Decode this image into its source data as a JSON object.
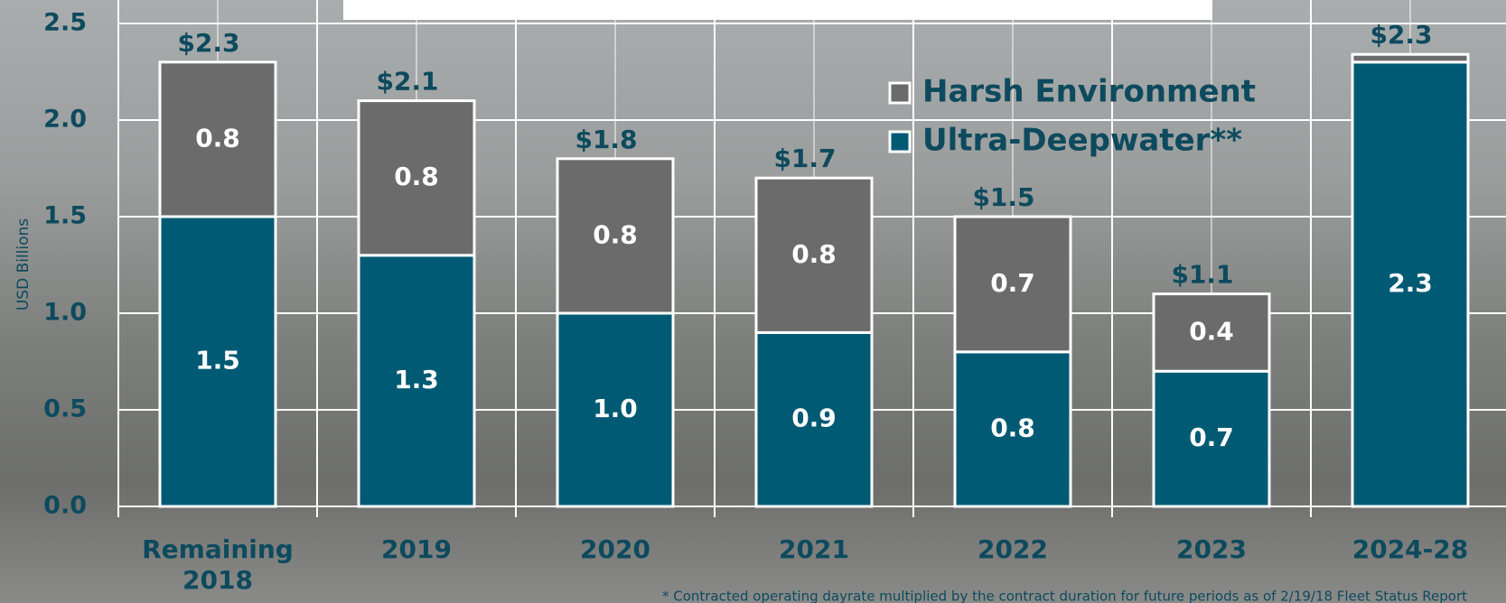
{
  "chart_data": {
    "type": "stacked_bar",
    "y_label": "USD Billions",
    "categories": [
      "Remaining 2018",
      "2019",
      "2020",
      "2021",
      "2022",
      "2023",
      "2024-28"
    ],
    "series": [
      {
        "name": "Ultra-Deepwater**",
        "color": "#005a73",
        "values": [
          1.5,
          1.3,
          1.0,
          0.9,
          0.8,
          0.7,
          2.3
        ],
        "value_labels": [
          "1.5",
          "1.3",
          "1.0",
          "0.9",
          "0.8",
          "0.7",
          "2.3"
        ]
      },
      {
        "name": "Harsh Environment",
        "color": "#6b6b6b",
        "values": [
          0.8,
          0.8,
          0.8,
          0.8,
          0.7,
          0.4,
          0.04
        ],
        "value_labels": [
          "0.8",
          "0.8",
          "0.8",
          "0.8",
          "0.7",
          "0.4",
          null
        ]
      }
    ],
    "total_labels": [
      "$2.3",
      "$2.1",
      "$1.8",
      "$1.7",
      "$1.5",
      "$1.1",
      "$2.3"
    ],
    "ylim": [
      0,
      2.5
    ],
    "yticks": [
      {
        "value": 0,
        "label": "0.0"
      },
      {
        "value": 0.5,
        "label": "0.5"
      },
      {
        "value": 1,
        "label": "1.0"
      },
      {
        "value": 1.5,
        "label": "1.5"
      },
      {
        "value": 2,
        "label": "2.0"
      },
      {
        "value": 2.5,
        "label": "2.5"
      }
    ],
    "grid": true,
    "legend": "top-right",
    "footnote": "* Contracted operating dayrate multiplied by the contract duration for future periods as of 2/19/18 Fleet Status Report"
  }
}
